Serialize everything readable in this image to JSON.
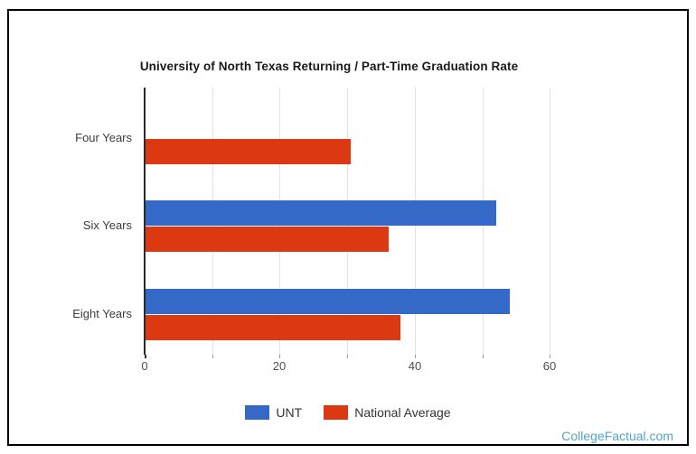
{
  "title": "University of North Texas Returning / Part-Time Graduation Rate",
  "watermark": "CollegeFactual.com",
  "colors": {
    "unt_blue": "#3569c8",
    "national_avg_red": "#dc3912",
    "watermark_teal": "#56a3c6",
    "gridline": "#e2e2e2",
    "axis": "#2b2b2b"
  },
  "chart_data": {
    "type": "bar",
    "orientation": "horizontal",
    "title": "University of North Texas Returning / Part-Time Graduation Rate",
    "categories": [
      "Four Years",
      "Six Years",
      "Eight Years"
    ],
    "series": [
      {
        "name": "UNT",
        "color": "#3569c8",
        "values": [
          null,
          52,
          54
        ]
      },
      {
        "name": "National Average",
        "color": "#dc3912",
        "values": [
          30.4,
          36,
          37.8
        ]
      }
    ],
    "xlabel": "",
    "ylabel": "",
    "xlim": [
      0,
      70
    ],
    "xticks": [
      0,
      20,
      40,
      60
    ],
    "gridline_step": 10,
    "grid": true,
    "legend_position": "bottom"
  }
}
